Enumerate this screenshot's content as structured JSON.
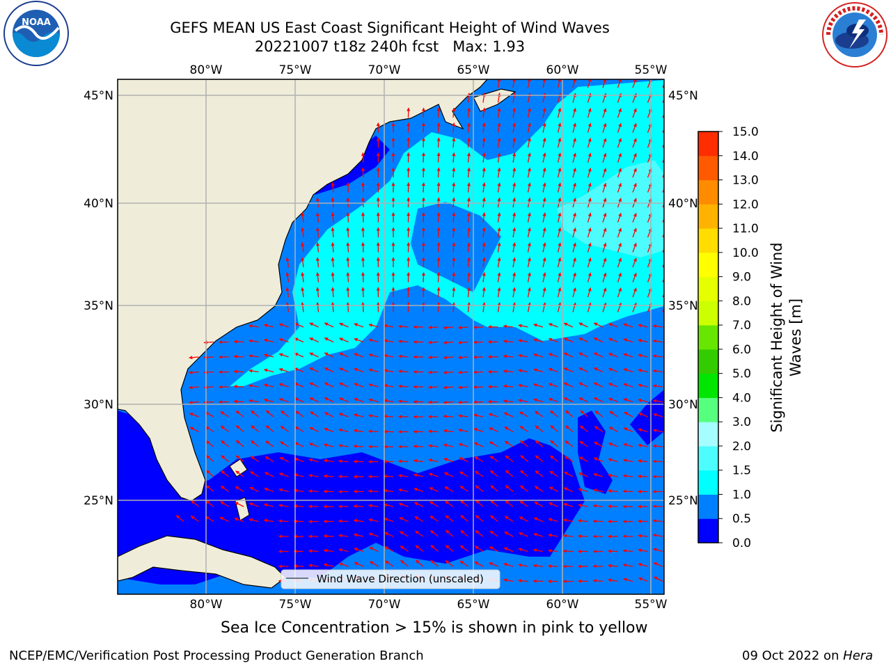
{
  "header": {
    "title_line1": "GEFS MEAN US East Coast Significant Height of Wind Waves",
    "title_line2": "20221007 t18z 240h fcst   Max: 1.93"
  },
  "logos": {
    "left_name": "noaa-logo",
    "left_text": "NOAA",
    "left_ring_text": "NATIONAL OCEANIC AND ATMOSPHERIC ADMINISTRATION · U.S. DEPARTMENT OF COMMERCE",
    "right_name": "nws-logo",
    "right_ring_text": "NATIONAL WEATHER SERVICE"
  },
  "map": {
    "lon_labels": [
      "80°W",
      "75°W",
      "70°W",
      "65°W",
      "60°W",
      "55°W"
    ],
    "lat_labels": [
      "45°N",
      "40°N",
      "35°N",
      "30°N",
      "25°N"
    ],
    "legend_label": "Wind Wave Direction (unscaled)",
    "colors": {
      "land": "#efedda",
      "deep_blue": "#0000ff",
      "mid_blue": "#0080ff",
      "cyan": "#00ffff",
      "light_cyan": "#4dfcff",
      "arrow": "#ff0000",
      "grid": "#b0b0b0"
    }
  },
  "colorbar": {
    "label_line1": "Significant Height of Wind",
    "label_line2": "Waves [m]",
    "ticks": [
      "0.0",
      "0.5",
      "1.0",
      "1.5",
      "2.0",
      "3.0",
      "4.0",
      "5.0",
      "6.0",
      "7.0",
      "8.0",
      "9.0",
      "10.0",
      "11.0",
      "12.0",
      "13.0",
      "14.0",
      "15.0"
    ],
    "colors": [
      "#0000ff",
      "#0080ff",
      "#00ffff",
      "#4dfcff",
      "#a6fdff",
      "#57ff7f",
      "#00e600",
      "#33cc00",
      "#66e600",
      "#ccff00",
      "#e6ff00",
      "#ffff00",
      "#ffdd00",
      "#ffb300",
      "#ff8c00",
      "#ff5a00",
      "#ff2d00"
    ]
  },
  "notes": {
    "sea_ice": "Sea Ice Concentration > 15% is shown in pink to yellow",
    "footer_left": "NCEP/EMC/Verification Post Processing Product Generation Branch",
    "footer_right_prefix": "09 Oct 2022 on ",
    "footer_right_host": "Hera"
  }
}
